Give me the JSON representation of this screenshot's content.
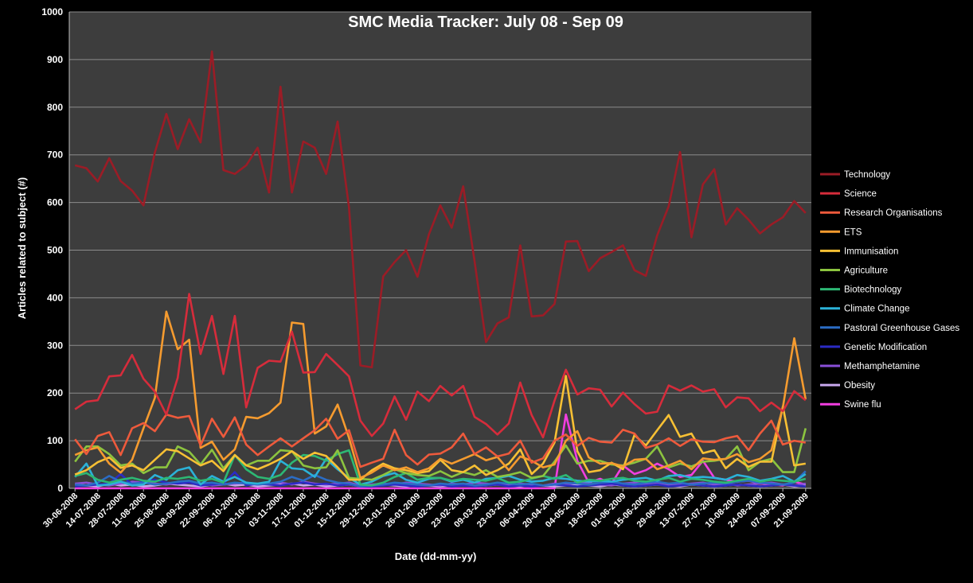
{
  "chart_data": {
    "type": "line",
    "title": "SMC Media Tracker: July 08 - Sep 09",
    "xlabel": "Date (dd-mm-yy)",
    "ylabel": "Articles related to subject (#)",
    "ylim": [
      0,
      1000
    ],
    "yticks": [
      "0",
      "100",
      "200",
      "300",
      "400",
      "500",
      "600",
      "700",
      "800",
      "900",
      "1000"
    ],
    "grid": true,
    "legend_position": "right",
    "colors": {
      "plot_background": "#3d3d3d",
      "page_background": "#000000",
      "gridline": "#8c8c8c",
      "text": "#ffffff"
    },
    "x": [
      "30-06-2008",
      "07-07-2008",
      "14-07-2008",
      "21-07-2008",
      "28-07-2008",
      "04-08-2008",
      "11-08-2008",
      "18-08-2008",
      "25-08-2008",
      "01-09-2008",
      "08-09-2008",
      "15-09-2008",
      "22-09-2008",
      "29-09-2008",
      "06-10-2008",
      "13-10-2008",
      "20-10-2008",
      "27-10-2008",
      "03-11-2008",
      "10-11-2008",
      "17-11-2008",
      "24-11-2008",
      "01-12-2008",
      "08-12-2008",
      "15-12-2008",
      "22-12-2008",
      "29-12-2008",
      "05-01-2009",
      "12-01-2009",
      "19-01-2009",
      "26-01-2009",
      "02-02-2009",
      "09-02-2009",
      "16-02-2009",
      "23-02-2009",
      "02-03-2009",
      "09-03-2009",
      "16-03-2009",
      "23-03-2009",
      "30-03-2009",
      "06-04-2009",
      "13-04-2009",
      "20-04-2009",
      "27-04-2009",
      "04-05-2009",
      "11-05-2009",
      "18-05-2009",
      "25-05-2009",
      "01-06-2009",
      "08-06-2009",
      "15-06-2009",
      "22-06-2009",
      "29-06-2009",
      "06-07-2009",
      "13-07-2009",
      "20-07-2009",
      "27-07-2009",
      "03-08-2009",
      "10-08-2009",
      "17-08-2009",
      "24-08-2009",
      "31-08-2009",
      "07-09-2009",
      "14-09-2009",
      "21-09-2009"
    ],
    "tick_labels": [
      "30-06-2008",
      "14-07-2008",
      "28-07-2008",
      "11-08-2008",
      "25-08-2008",
      "08-09-2008",
      "22-09-2008",
      "06-10-2008",
      "20-10-2008",
      "03-11-2008",
      "17-11-2008",
      "01-12-2008",
      "15-12-2008",
      "29-12-2008",
      "12-01-2009",
      "26-01-2009",
      "09-02-2009",
      "23-02-2009",
      "09-03-2009",
      "23-03-2009",
      "06-04-2009",
      "20-04-2009",
      "04-05-2009",
      "18-05-2009",
      "01-06-2009",
      "15-06-2009",
      "29-06-2009",
      "13-07-2009",
      "27-07-2009",
      "10-08-2009",
      "24-08-2009",
      "07-09-2009",
      "21-09-2009"
    ],
    "series": [
      {
        "name": "Technology",
        "color": "#9b1c26",
        "values": [
          678,
          672,
          644,
          693,
          645,
          625,
          594,
          705,
          786,
          712,
          775,
          726,
          917,
          668,
          660,
          678,
          715,
          621,
          843,
          621,
          728,
          715,
          660,
          770,
          590,
          258,
          254,
          445,
          475,
          500,
          444,
          533,
          594,
          547,
          634,
          477,
          307,
          346,
          359,
          510,
          361,
          363,
          387,
          518,
          519,
          456,
          483,
          496,
          510,
          458,
          446,
          531,
          592,
          706,
          527,
          638,
          670,
          554,
          588,
          564,
          535,
          554,
          569,
          603,
          578
        ]
      },
      {
        "name": "Science",
        "color": "#d62c3b",
        "values": [
          166,
          182,
          185,
          235,
          237,
          280,
          230,
          203,
          155,
          232,
          408,
          282,
          362,
          240,
          362,
          170,
          253,
          268,
          266,
          329,
          243,
          244,
          282,
          259,
          235,
          142,
          110,
          136,
          193,
          144,
          203,
          183,
          215,
          195,
          215,
          150,
          135,
          113,
          136,
          222,
          154,
          107,
          184,
          249,
          197,
          210,
          207,
          172,
          201,
          177,
          157,
          161,
          216,
          205,
          216,
          203,
          208,
          170,
          191,
          189,
          162,
          180,
          162,
          204,
          185
        ]
      },
      {
        "name": "Research Organisations",
        "color": "#ee5a3c",
        "values": [
          103,
          72,
          110,
          118,
          70,
          126,
          137,
          120,
          155,
          148,
          152,
          90,
          146,
          108,
          149,
          92,
          70,
          88,
          105,
          88,
          105,
          122,
          146,
          104,
          122,
          45,
          54,
          62,
          123,
          70,
          50,
          71,
          73,
          86,
          115,
          72,
          86,
          67,
          73,
          100,
          54,
          63,
          100,
          113,
          89,
          106,
          98,
          96,
          123,
          115,
          85,
          92,
          105,
          89,
          103,
          98,
          97,
          105,
          110,
          80,
          115,
          142,
          92,
          100,
          96
        ]
      },
      {
        "name": "ETS",
        "color": "#f59b2f",
        "values": [
          70,
          80,
          86,
          52,
          33,
          60,
          126,
          190,
          371,
          292,
          312,
          85,
          98,
          60,
          82,
          150,
          147,
          158,
          180,
          348,
          345,
          115,
          130,
          176,
          106,
          22,
          33,
          48,
          38,
          44,
          34,
          42,
          62,
          52,
          62,
          72,
          59,
          66,
          38,
          67,
          58,
          44,
          50,
          100,
          120,
          65,
          52,
          53,
          46,
          60,
          62,
          40,
          48,
          58,
          40,
          63,
          60,
          62,
          72,
          55,
          62,
          80,
          170,
          315,
          187
        ]
      },
      {
        "name": "Immunisation",
        "color": "#f7c034",
        "values": [
          29,
          38,
          55,
          65,
          43,
          48,
          38,
          60,
          82,
          78,
          63,
          48,
          58,
          36,
          70,
          48,
          40,
          50,
          62,
          78,
          62,
          75,
          68,
          44,
          18,
          18,
          38,
          52,
          42,
          38,
          32,
          36,
          60,
          38,
          34,
          48,
          28,
          38,
          52,
          82,
          30,
          52,
          96,
          236,
          78,
          34,
          38,
          54,
          40,
          112,
          90,
          122,
          154,
          108,
          115,
          74,
          80,
          42,
          62,
          45,
          56,
          56,
          172,
          48,
          52
        ]
      },
      {
        "name": "Agriculture",
        "color": "#8cc43f",
        "values": [
          56,
          88,
          88,
          72,
          48,
          52,
          32,
          44,
          44,
          88,
          77,
          50,
          81,
          42,
          70,
          48,
          58,
          58,
          80,
          78,
          48,
          42,
          44,
          80,
          22,
          20,
          18,
          28,
          40,
          32,
          28,
          26,
          36,
          24,
          34,
          28,
          38,
          24,
          28,
          34,
          22,
          26,
          56,
          90,
          52,
          58,
          58,
          50,
          48,
          54,
          62,
          88,
          44,
          52,
          46,
          56,
          58,
          62,
          88,
          38,
          56,
          62,
          34,
          34,
          126
        ]
      },
      {
        "name": "Biotechnology",
        "color": "#2db874",
        "values": [
          26,
          32,
          18,
          12,
          18,
          22,
          16,
          14,
          22,
          20,
          24,
          16,
          20,
          12,
          70,
          40,
          24,
          20,
          28,
          54,
          70,
          68,
          58,
          72,
          80,
          8,
          6,
          12,
          24,
          32,
          18,
          22,
          22,
          16,
          20,
          18,
          16,
          22,
          12,
          14,
          20,
          26,
          20,
          28,
          12,
          18,
          16,
          20,
          22,
          16,
          14,
          18,
          22,
          14,
          20,
          18,
          14,
          12,
          16,
          20,
          14,
          18,
          16,
          14,
          20
        ]
      },
      {
        "name": "Climate Change",
        "color": "#2bb2d8",
        "values": [
          24,
          52,
          6,
          8,
          14,
          6,
          8,
          28,
          18,
          38,
          44,
          8,
          26,
          14,
          24,
          12,
          10,
          14,
          58,
          42,
          40,
          24,
          62,
          40,
          22,
          8,
          14,
          26,
          32,
          18,
          12,
          20,
          22,
          14,
          18,
          12,
          20,
          22,
          26,
          18,
          14,
          16,
          22,
          20,
          16,
          14,
          16,
          14,
          18,
          20,
          22,
          16,
          26,
          28,
          22,
          24,
          22,
          18,
          28,
          24,
          16,
          20,
          26,
          14,
          30
        ]
      },
      {
        "name": "Pastoral Greenhouse Gases",
        "color": "#2b6cc4",
        "values": [
          8,
          6,
          12,
          26,
          14,
          10,
          12,
          8,
          10,
          14,
          16,
          10,
          12,
          8,
          12,
          10,
          8,
          10,
          14,
          24,
          16,
          28,
          18,
          12,
          10,
          4,
          6,
          8,
          12,
          10,
          8,
          6,
          10,
          8,
          10,
          6,
          8,
          12,
          10,
          8,
          10,
          6,
          8,
          12,
          10,
          8,
          12,
          14,
          10,
          8,
          12,
          14,
          10,
          12,
          8,
          10,
          12,
          10,
          14,
          16,
          12,
          10,
          8,
          12,
          36
        ]
      },
      {
        "name": "Genetic Modification",
        "color": "#2b2bc4",
        "values": [
          4,
          6,
          8,
          10,
          30,
          8,
          14,
          18,
          12,
          10,
          12,
          6,
          8,
          10,
          34,
          6,
          10,
          8,
          6,
          10,
          12,
          8,
          10,
          6,
          8,
          4,
          4,
          6,
          8,
          6,
          4,
          6,
          8,
          4,
          6,
          4,
          6,
          8,
          4,
          6,
          4,
          6,
          8,
          6,
          4,
          6,
          8,
          10,
          6,
          4,
          6,
          8,
          4,
          6,
          8,
          6,
          4,
          6,
          8,
          6,
          4,
          6,
          8,
          6,
          4
        ]
      },
      {
        "name": "Methamphetamine",
        "color": "#8a4fd8",
        "values": [
          10,
          12,
          8,
          6,
          10,
          14,
          12,
          10,
          8,
          12,
          14,
          10,
          6,
          8,
          10,
          12,
          8,
          10,
          12,
          8,
          14,
          10,
          8,
          10,
          12,
          6,
          8,
          10,
          8,
          12,
          10,
          8,
          6,
          10,
          8,
          12,
          10,
          8,
          6,
          10,
          8,
          6,
          10,
          8,
          12,
          10,
          8,
          6,
          10,
          12,
          8,
          10,
          6,
          8,
          10,
          12,
          8,
          10,
          6,
          8,
          10,
          12,
          8,
          6,
          10
        ]
      },
      {
        "name": "Obesity",
        "color": "#c8a8ee",
        "values": [
          8,
          6,
          4,
          10,
          6,
          8,
          4,
          6,
          10,
          8,
          6,
          4,
          8,
          10,
          6,
          8,
          4,
          6,
          8,
          10,
          6,
          8,
          4,
          6,
          8,
          4,
          6,
          8,
          6,
          4,
          8,
          6,
          4,
          6,
          8,
          4,
          6,
          8,
          6,
          4,
          8,
          6,
          4,
          6,
          8,
          6,
          4,
          8,
          6,
          4,
          6,
          8,
          6,
          4,
          8,
          6,
          4,
          6,
          8,
          6,
          4,
          6,
          8,
          4,
          6
        ]
      },
      {
        "name": "Swine flu",
        "color": "#f23ee0",
        "values": [
          0,
          0,
          0,
          0,
          0,
          0,
          0,
          0,
          0,
          0,
          0,
          0,
          0,
          0,
          0,
          0,
          0,
          0,
          0,
          0,
          0,
          0,
          0,
          0,
          0,
          0,
          0,
          0,
          0,
          0,
          0,
          0,
          0,
          0,
          0,
          0,
          0,
          0,
          0,
          0,
          0,
          0,
          0,
          155,
          58,
          12,
          20,
          10,
          48,
          30,
          38,
          52,
          40,
          24,
          28,
          58,
          22,
          18,
          14,
          16,
          10,
          8,
          6,
          14,
          8
        ]
      }
    ]
  }
}
